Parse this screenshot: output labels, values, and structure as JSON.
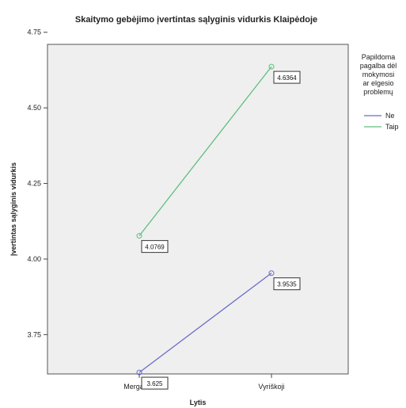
{
  "chart_data": {
    "type": "line",
    "title": "Skaitymo gebėjimo įvertintas sąlyginis vidurkis Klaipėdoje",
    "xlabel": "Lytis",
    "ylabel": "Įvertintas sąlyginis vidurkis",
    "categories": [
      "Mergaitės",
      "Vyriškoji"
    ],
    "ylim": [
      3.62,
      4.71
    ],
    "yticks": [
      3.75,
      4.0,
      4.25,
      4.5,
      4.75
    ],
    "ytick_labels": [
      "3.75",
      "4.00",
      "4.25",
      "4.50",
      "4.75"
    ],
    "grid": false,
    "legend": {
      "title": "Papildoma pagalba dėl mokymosi ar elgesio problemų",
      "placement": "right"
    },
    "series": [
      {
        "name": "Ne",
        "color": "#6b6bcc",
        "values": [
          3.625,
          3.9535
        ],
        "labels": [
          "3.625",
          "3.9535"
        ]
      },
      {
        "name": "Taip",
        "color": "#5fbf7f",
        "values": [
          4.0769,
          4.6364
        ],
        "labels": [
          "4.0769",
          "4.6364"
        ]
      }
    ]
  }
}
